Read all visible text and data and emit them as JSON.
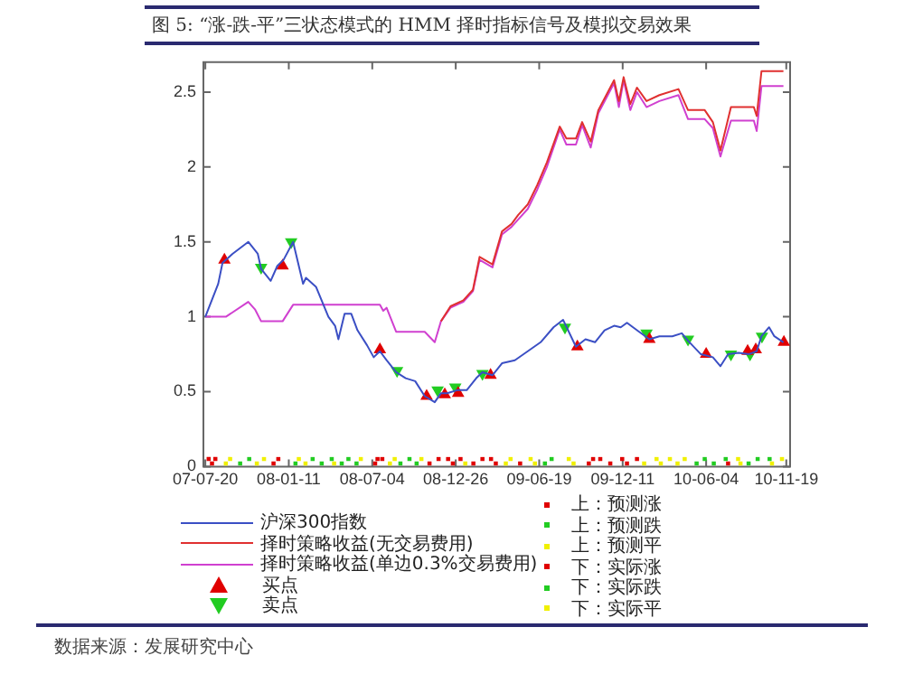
{
  "chart_data": {
    "type": "line",
    "title": "图 5: “涨-跌-平”三状态模式的 HMM 择时指标信号及模拟交易效果",
    "annotations": [
      "数据来源：发展研究中心"
    ],
    "xlim": [
      "2007-07-16",
      "2010-11-27"
    ],
    "xticks": [
      {
        "value": "2007-07-20",
        "label": "07-07-20"
      },
      {
        "value": "2008-01-11",
        "label": "08-01-11"
      },
      {
        "value": "2008-07-04",
        "label": "08-07-04"
      },
      {
        "value": "2008-12-26",
        "label": "08-12-26"
      },
      {
        "value": "2009-06-19",
        "label": "09-06-19"
      },
      {
        "value": "2009-12-11",
        "label": "09-12-11"
      },
      {
        "value": "2010-06-04",
        "label": "10-06-04"
      },
      {
        "value": "2010-11-19",
        "label": "10-11-19"
      }
    ],
    "ylim": [
      0,
      2.7
    ],
    "yticks": [
      0,
      0.5,
      1,
      1.5,
      2,
      2.5
    ],
    "grid": false,
    "legend": "bottom",
    "line_style": "solid",
    "series": [
      {
        "name": "沪深300指数",
        "color": "#3b4fc4",
        "marker": "none",
        "x": [
          "2007-07-20",
          "2007-08-16",
          "2007-08-25",
          "2007-09-15",
          "2007-10-18",
          "2007-11-07",
          "2007-11-14",
          "2007-12-04",
          "2007-12-18",
          "2007-12-31",
          "2008-01-20",
          "2008-02-10",
          "2008-02-16",
          "2008-03-08",
          "2008-04-03",
          "2008-04-17",
          "2008-04-24",
          "2008-05-07",
          "2008-05-21",
          "2008-06-03",
          "2008-06-23",
          "2008-07-07",
          "2008-07-20",
          "2008-08-03",
          "2008-08-23",
          "2008-09-12",
          "2008-10-02",
          "2008-10-22",
          "2008-11-12",
          "2008-11-25",
          "2008-12-08",
          "2008-12-29",
          "2009-01-18",
          "2009-02-07",
          "2009-02-20",
          "2009-03-13",
          "2009-04-02",
          "2009-04-29",
          "2009-05-26",
          "2009-06-22",
          "2009-07-19",
          "2009-08-08",
          "2009-09-04",
          "2009-09-24",
          "2009-10-14",
          "2009-11-03",
          "2009-11-23",
          "2009-12-07",
          "2009-12-20",
          "2010-01-10",
          "2010-02-05",
          "2010-02-26",
          "2010-03-25",
          "2010-04-14",
          "2010-04-27",
          "2010-05-24",
          "2010-06-18",
          "2010-07-04",
          "2010-07-20",
          "2010-08-11",
          "2010-09-01",
          "2010-09-18",
          "2010-09-28",
          "2010-10-14",
          "2010-10-25",
          "2010-11-13"
        ],
        "values": [
          1.0,
          1.22,
          1.36,
          1.42,
          1.5,
          1.42,
          1.32,
          1.24,
          1.34,
          1.38,
          1.5,
          1.22,
          1.26,
          1.2,
          1.0,
          0.94,
          0.85,
          1.02,
          1.02,
          0.91,
          0.81,
          0.73,
          0.77,
          0.71,
          0.63,
          0.59,
          0.57,
          0.47,
          0.43,
          0.49,
          0.49,
          0.51,
          0.51,
          0.59,
          0.63,
          0.61,
          0.69,
          0.71,
          0.77,
          0.83,
          0.93,
          0.98,
          0.8,
          0.85,
          0.83,
          0.91,
          0.94,
          0.93,
          0.96,
          0.91,
          0.85,
          0.87,
          0.87,
          0.89,
          0.84,
          0.75,
          0.73,
          0.67,
          0.75,
          0.76,
          0.75,
          0.77,
          0.87,
          0.93,
          0.87,
          0.83
        ]
      },
      {
        "name": "择时策略收益(无交易费用)",
        "color": "#e03030",
        "marker": "none",
        "x": [
          "2008-11-25",
          "2008-12-15",
          "2009-01-11",
          "2009-01-31",
          "2009-02-14",
          "2009-03-13",
          "2009-04-02",
          "2009-04-22",
          "2009-05-06",
          "2009-05-26",
          "2009-06-15",
          "2009-07-05",
          "2009-08-01",
          "2009-08-15",
          "2009-09-04",
          "2009-09-17",
          "2009-10-05",
          "2009-10-21",
          "2009-11-23",
          "2009-12-03",
          "2009-12-13",
          "2009-12-27",
          "2010-01-10",
          "2010-01-30",
          "2010-02-26",
          "2010-04-07",
          "2010-04-27",
          "2010-06-01",
          "2010-06-18",
          "2010-07-04",
          "2010-07-26",
          "2010-09-12",
          "2010-09-18",
          "2010-09-28",
          "2010-11-13"
        ],
        "values": [
          0.97,
          1.07,
          1.11,
          1.18,
          1.4,
          1.35,
          1.57,
          1.62,
          1.68,
          1.75,
          1.88,
          2.03,
          2.27,
          2.19,
          2.19,
          2.3,
          2.17,
          2.38,
          2.58,
          2.44,
          2.6,
          2.42,
          2.53,
          2.44,
          2.48,
          2.52,
          2.38,
          2.38,
          2.3,
          2.11,
          2.4,
          2.4,
          2.34,
          2.64,
          2.64
        ]
      },
      {
        "name": "择时策略收益(单边0.3%交易费用)",
        "color": "#d040d0",
        "marker": "none",
        "x": [
          "2007-07-20",
          "2007-09-01",
          "2007-10-18",
          "2007-11-01",
          "2007-11-14",
          "2007-12-29",
          "2008-01-20",
          "2008-07-20",
          "2008-07-27",
          "2008-08-03",
          "2008-08-23",
          "2008-10-22",
          "2008-11-12",
          "2008-11-25",
          "2008-12-15",
          "2009-01-11",
          "2009-01-31",
          "2009-02-14",
          "2009-03-13",
          "2009-04-02",
          "2009-04-22",
          "2009-05-06",
          "2009-05-26",
          "2009-06-15",
          "2009-07-05",
          "2009-08-01",
          "2009-08-15",
          "2009-09-04",
          "2009-09-17",
          "2009-10-05",
          "2009-10-21",
          "2009-11-23",
          "2009-12-03",
          "2009-12-13",
          "2009-12-27",
          "2010-01-10",
          "2010-01-30",
          "2010-02-26",
          "2010-04-07",
          "2010-04-27",
          "2010-06-01",
          "2010-06-18",
          "2010-07-04",
          "2010-07-26",
          "2010-09-12",
          "2010-09-18",
          "2010-09-28",
          "2010-11-13"
        ],
        "values": [
          1.0,
          1.0,
          1.1,
          1.05,
          0.97,
          0.97,
          1.08,
          1.08,
          1.04,
          1.06,
          0.9,
          0.9,
          0.83,
          0.97,
          1.06,
          1.1,
          1.17,
          1.38,
          1.33,
          1.55,
          1.6,
          1.65,
          1.72,
          1.85,
          2.0,
          2.25,
          2.15,
          2.15,
          2.28,
          2.13,
          2.36,
          2.56,
          2.4,
          2.58,
          2.38,
          2.5,
          2.4,
          2.44,
          2.48,
          2.32,
          2.32,
          2.26,
          2.07,
          2.31,
          2.31,
          2.24,
          2.54,
          2.54
        ]
      },
      {
        "name": "买点",
        "type": "scatter",
        "color": "#e00000",
        "marker": "triangle",
        "x": [
          "2007-08-29",
          "2007-12-29",
          "2008-07-20",
          "2008-10-26",
          "2008-12-03",
          "2008-12-31",
          "2009-03-09",
          "2009-09-07",
          "2010-02-05",
          "2010-06-04",
          "2010-08-30",
          "2010-09-16",
          "2010-11-14"
        ],
        "values": [
          1.38,
          1.34,
          0.78,
          0.47,
          0.48,
          0.49,
          0.61,
          0.8,
          0.85,
          0.75,
          0.77,
          0.78,
          0.83
        ]
      },
      {
        "name": "卖点",
        "type": "scatter",
        "color": "#22cc22",
        "marker": "triangle_down",
        "x": [
          "2007-11-14",
          "2008-01-16",
          "2008-08-25",
          "2008-11-18",
          "2008-12-25",
          "2009-02-20",
          "2009-08-12",
          "2010-01-30",
          "2010-04-27",
          "2010-07-26",
          "2010-09-04",
          "2010-09-29"
        ],
        "values": [
          1.33,
          1.5,
          0.64,
          0.51,
          0.53,
          0.62,
          0.93,
          0.89,
          0.85,
          0.75,
          0.75,
          0.87
        ]
      },
      {
        "name": "上：预测涨",
        "type": "scatter",
        "color": "#e00000",
        "marker": "square",
        "x": [
          "2007-07-27",
          "2007-08-10",
          "2007-12-20",
          "2008-07-15",
          "2008-07-25",
          "2008-11-20",
          "2008-12-10",
          "2009-01-05",
          "2009-02-20",
          "2009-03-10",
          "2009-10-10",
          "2009-10-25",
          "2009-12-10",
          "2010-01-10"
        ],
        "values": [
          0.05,
          0.05,
          0.05,
          0.05,
          0.05,
          0.05,
          0.05,
          0.05,
          0.05,
          0.05,
          0.05,
          0.05,
          0.05,
          0.05
        ]
      },
      {
        "name": "上：预测跌",
        "type": "scatter",
        "color": "#22cc22",
        "marker": "square",
        "x": [
          "2007-10-20",
          "2008-03-01",
          "2008-04-10",
          "2008-05-15",
          "2008-09-20",
          "2009-07-15",
          "2010-06-01",
          "2010-07-15",
          "2010-09-20",
          "2010-10-15"
        ],
        "values": [
          0.05,
          0.05,
          0.05,
          0.05,
          0.05,
          0.05,
          0.05,
          0.05,
          0.05,
          0.05
        ]
      },
      {
        "name": "上：预测平",
        "type": "scatter",
        "color": "#f0f000",
        "marker": "square",
        "x": [
          "2007-09-10",
          "2007-11-20",
          "2008-02-01",
          "2008-06-10",
          "2008-08-20",
          "2008-10-15",
          "2009-04-20",
          "2009-06-01",
          "2009-08-20",
          "2010-02-20",
          "2010-03-20",
          "2010-04-20",
          "2010-08-10",
          "2010-11-10"
        ],
        "values": [
          0.05,
          0.05,
          0.05,
          0.05,
          0.05,
          0.05,
          0.05,
          0.05,
          0.05,
          0.05,
          0.05,
          0.05,
          0.05,
          0.05
        ]
      },
      {
        "name": "下：实际涨",
        "type": "scatter",
        "color": "#e00000",
        "marker": "square",
        "x": [
          "2007-08-03",
          "2007-12-10",
          "2008-07-10",
          "2008-11-01",
          "2008-12-20",
          "2009-02-01",
          "2009-03-20",
          "2009-05-10",
          "2009-10-01",
          "2009-11-15",
          "2009-12-20",
          "2010-07-20"
        ],
        "values": [
          0.02,
          0.02,
          0.02,
          0.02,
          0.02,
          0.02,
          0.02,
          0.02,
          0.02,
          0.02,
          0.02,
          0.02
        ]
      },
      {
        "name": "下：实际跌",
        "type": "scatter",
        "color": "#22cc22",
        "marker": "square",
        "x": [
          "2007-10-01",
          "2008-01-25",
          "2008-03-20",
          "2008-05-01",
          "2008-06-01",
          "2008-09-01",
          "2008-10-05",
          "2009-07-01",
          "2010-05-15",
          "2010-06-20",
          "2010-09-01"
        ],
        "values": [
          0.02,
          0.02,
          0.02,
          0.02,
          0.02,
          0.02,
          0.02,
          0.02,
          0.02,
          0.02,
          0.02
        ]
      },
      {
        "name": "下：实际平",
        "type": "scatter",
        "color": "#f0f000",
        "marker": "square",
        "x": [
          "2007-09-01",
          "2007-11-05",
          "2008-02-15",
          "2008-04-15",
          "2008-08-10",
          "2009-01-15",
          "2009-04-10",
          "2009-06-10",
          "2009-08-30",
          "2010-01-25",
          "2010-03-01",
          "2010-04-05",
          "2010-08-15",
          "2010-10-20"
        ],
        "values": [
          0.02,
          0.02,
          0.02,
          0.02,
          0.02,
          0.02,
          0.02,
          0.02,
          0.02,
          0.02,
          0.02,
          0.02,
          0.02,
          0.02
        ]
      }
    ]
  }
}
